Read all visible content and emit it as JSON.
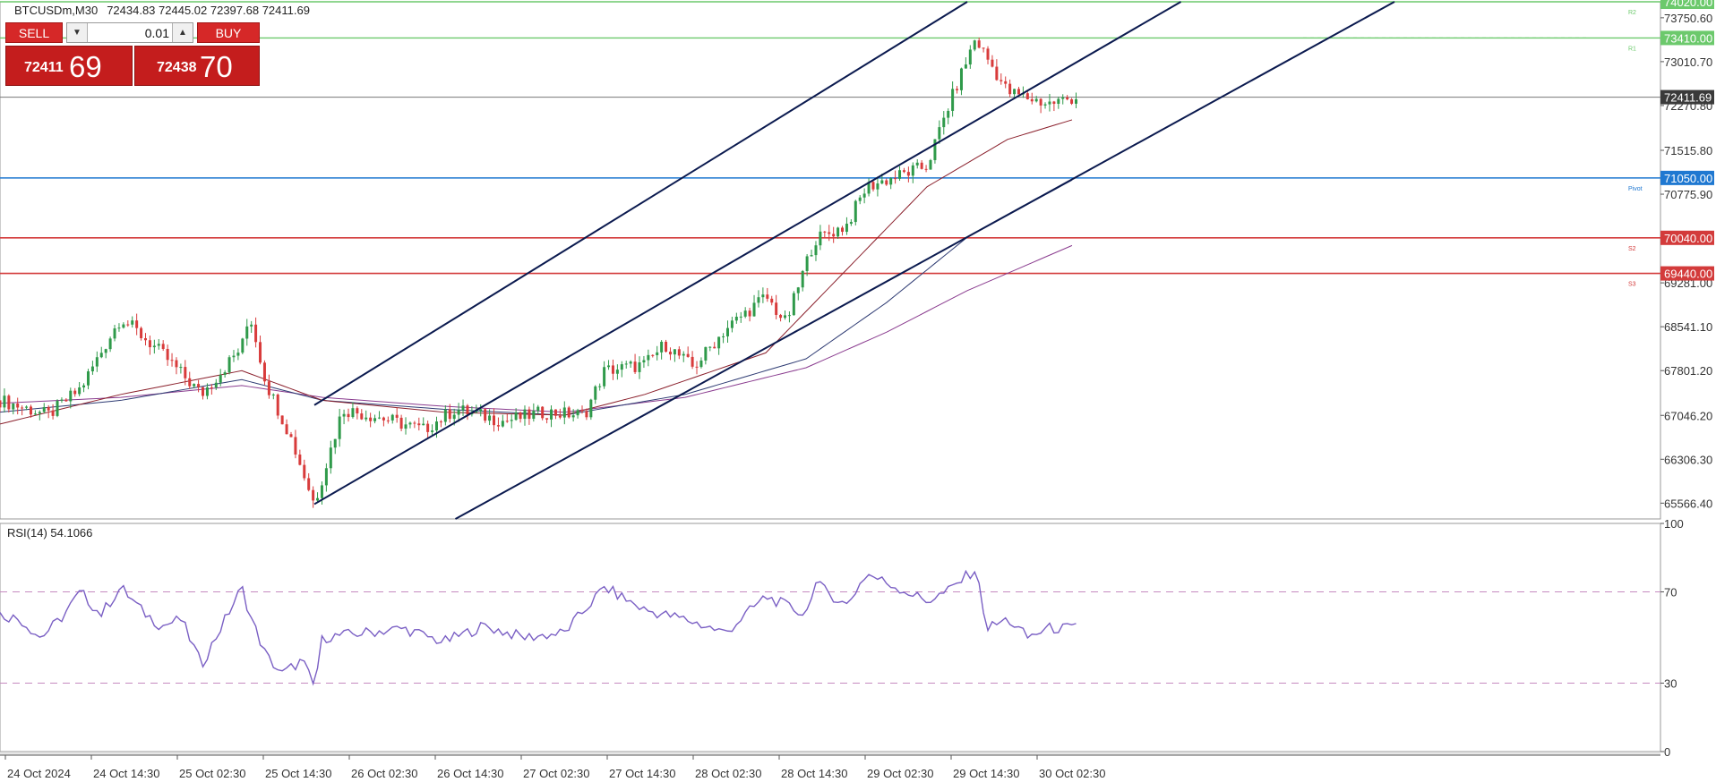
{
  "header": {
    "symbol_label": "BTCUSDm,M30",
    "ohlc": "72434.83 72445.02 72397.68 72411.69"
  },
  "trade_panel": {
    "sell_label": "SELL",
    "buy_label": "BUY",
    "lot": "0.01",
    "bid_small": "72411",
    "bid_big": "69",
    "ask_small": "72438",
    "ask_big": "70"
  },
  "colors": {
    "resistance": "#6cc96c",
    "pivot": "#1f78d1",
    "support": "#d33b3b",
    "channel": "#0b1a4f",
    "candle_up": "#2f9a4a",
    "candle_down": "#d83b3b",
    "ma_fast": "#8a1f2b",
    "ma_mid": "#2e3b73",
    "ma_slow": "#8a3c8f",
    "rsi": "#7a5fc4",
    "rsi_levels": "#c58ac0"
  },
  "chart_data": [
    {
      "type": "candlestick",
      "symbol": "BTCUSDm",
      "timeframe": "M30",
      "ylim": [
        65300,
        74020
      ],
      "y_ticks": [
        "73750.60",
        "73010.70",
        "72270.80",
        "71515.80",
        "70775.90",
        "69281.00",
        "68541.10",
        "67801.20",
        "67046.20",
        "66306.30",
        "65566.40"
      ],
      "x_ticks": [
        "24 Oct 2024",
        "24 Oct 14:30",
        "25 Oct 02:30",
        "25 Oct 14:30",
        "26 Oct 02:30",
        "26 Oct 14:30",
        "27 Oct 02:30",
        "27 Oct 14:30",
        "28 Oct 02:30",
        "28 Oct 14:30",
        "29 Oct 02:30",
        "29 Oct 14:30",
        "30 Oct 02:30"
      ],
      "current_price": "72411.69",
      "levels": [
        {
          "price": 74020,
          "label": "74020.00",
          "tag": "R2",
          "kind": "resistance"
        },
        {
          "price": 73410,
          "label": "73410.00",
          "tag": "R1",
          "kind": "resistance"
        },
        {
          "price": 71050,
          "label": "71050.00",
          "tag": "Pivot",
          "kind": "pivot"
        },
        {
          "price": 70040,
          "label": "70040.00",
          "tag": "S2",
          "kind": "support"
        },
        {
          "price": 69440,
          "label": "69440.00",
          "tag": "S3",
          "kind": "support"
        }
      ],
      "channel_lines": [
        {
          "from": {
            "bar": 0.78,
            "price": 67220
          },
          "to": {
            "bar": 2.4,
            "price": 74020
          }
        },
        {
          "from": {
            "bar": 0.78,
            "price": 65550
          },
          "to": {
            "bar": 2.93,
            "price": 74020
          }
        },
        {
          "from": {
            "bar": 1.13,
            "price": 65300
          },
          "to": {
            "bar": 3.46,
            "price": 74020
          }
        }
      ],
      "close_path": [
        [
          0,
          67300
        ],
        [
          0.12,
          67050
        ],
        [
          0.2,
          67500
        ],
        [
          0.3,
          68700
        ],
        [
          0.4,
          68100
        ],
        [
          0.5,
          67400
        ],
        [
          0.6,
          68200
        ],
        [
          0.62,
          68750
        ],
        [
          0.66,
          67600
        ],
        [
          0.72,
          66700
        ],
        [
          0.78,
          65550
        ],
        [
          0.85,
          67150
        ],
        [
          0.95,
          67000
        ],
        [
          1.05,
          66800
        ],
        [
          1.13,
          67150
        ],
        [
          1.25,
          66950
        ],
        [
          1.35,
          67100
        ],
        [
          1.45,
          67050
        ],
        [
          1.5,
          67800
        ],
        [
          1.6,
          67900
        ],
        [
          1.65,
          68250
        ],
        [
          1.72,
          67850
        ],
        [
          1.8,
          68500
        ],
        [
          1.9,
          69050
        ],
        [
          1.95,
          68600
        ],
        [
          2.02,
          70000
        ],
        [
          2.1,
          70250
        ],
        [
          2.15,
          70900
        ],
        [
          2.3,
          71250
        ],
        [
          2.35,
          72200
        ],
        [
          2.42,
          73400
        ],
        [
          2.5,
          72500
        ],
        [
          2.6,
          72300
        ],
        [
          2.67,
          72411.69
        ]
      ],
      "ma_fast_path": [
        [
          0,
          66900
        ],
        [
          0.3,
          67400
        ],
        [
          0.6,
          67800
        ],
        [
          0.8,
          67300
        ],
        [
          1.1,
          67100
        ],
        [
          1.4,
          67050
        ],
        [
          1.6,
          67400
        ],
        [
          1.9,
          68100
        ],
        [
          2.1,
          69500
        ],
        [
          2.3,
          70900
        ],
        [
          2.5,
          71700
        ],
        [
          2.67,
          72050
        ]
      ],
      "ma_mid_path": [
        [
          0,
          67100
        ],
        [
          0.3,
          67300
        ],
        [
          0.6,
          67650
        ],
        [
          0.8,
          67300
        ],
        [
          1.1,
          67150
        ],
        [
          1.4,
          67050
        ],
        [
          1.7,
          67400
        ],
        [
          2.0,
          68000
        ],
        [
          2.2,
          68950
        ],
        [
          2.4,
          70050
        ],
        [
          2.67,
          71050
        ]
      ],
      "ma_slow_path": [
        [
          0,
          67250
        ],
        [
          0.3,
          67350
        ],
        [
          0.6,
          67550
        ],
        [
          0.8,
          67350
        ],
        [
          1.1,
          67200
        ],
        [
          1.4,
          67100
        ],
        [
          1.7,
          67350
        ],
        [
          2.0,
          67850
        ],
        [
          2.2,
          68450
        ],
        [
          2.4,
          69150
        ],
        [
          2.67,
          69940
        ]
      ]
    },
    {
      "type": "line",
      "indicator_label": "RSI(14) 54.1066",
      "ylim": [
        0,
        100
      ],
      "y_ticks": [
        "100",
        "70",
        "30",
        "0"
      ],
      "levels": [
        70,
        30
      ],
      "points": [
        [
          0,
          60
        ],
        [
          0.05,
          58
        ],
        [
          0.1,
          50
        ],
        [
          0.15,
          58
        ],
        [
          0.2,
          70
        ],
        [
          0.25,
          60
        ],
        [
          0.3,
          72
        ],
        [
          0.35,
          62
        ],
        [
          0.4,
          55
        ],
        [
          0.45,
          58
        ],
        [
          0.5,
          38
        ],
        [
          0.55,
          55
        ],
        [
          0.6,
          72
        ],
        [
          0.62,
          60
        ],
        [
          0.66,
          42
        ],
        [
          0.7,
          34
        ],
        [
          0.75,
          40
        ],
        [
          0.78,
          28
        ],
        [
          0.8,
          50
        ],
        [
          0.9,
          52
        ],
        [
          1.0,
          54
        ],
        [
          1.1,
          48
        ],
        [
          1.2,
          55
        ],
        [
          1.3,
          50
        ],
        [
          1.4,
          52
        ],
        [
          1.5,
          72
        ],
        [
          1.6,
          62
        ],
        [
          1.7,
          58
        ],
        [
          1.8,
          52
        ],
        [
          1.9,
          68
        ],
        [
          2.0,
          60
        ],
        [
          2.02,
          74
        ],
        [
          2.1,
          64
        ],
        [
          2.15,
          78
        ],
        [
          2.3,
          66
        ],
        [
          2.35,
          70
        ],
        [
          2.42,
          80
        ],
        [
          2.45,
          54
        ],
        [
          2.5,
          58
        ],
        [
          2.55,
          50
        ],
        [
          2.6,
          54
        ],
        [
          2.67,
          54
        ]
      ]
    }
  ]
}
